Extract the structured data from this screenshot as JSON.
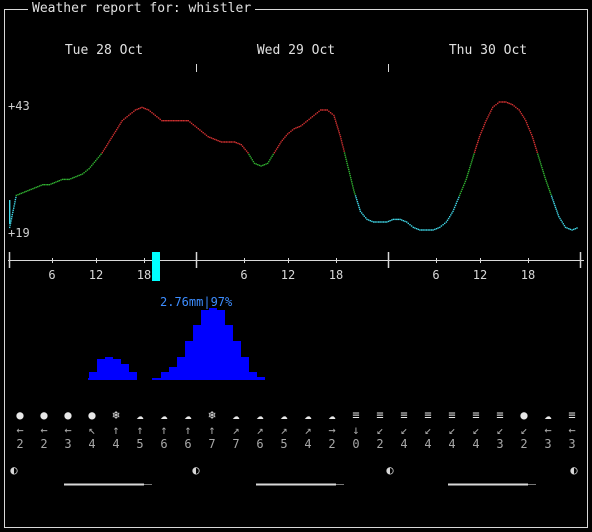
{
  "header": {
    "title": "Weather report for: whistler"
  },
  "days": [
    {
      "label": "Tue 28 Oct"
    },
    {
      "label": "Wed 29 Oct"
    },
    {
      "label": "Thu 30 Oct"
    }
  ],
  "temperature_axis": {
    "max_label": "+43",
    "min_label": "+19"
  },
  "hour_ticks": [
    "6",
    "12",
    "18",
    "6",
    "12",
    "18",
    "6",
    "12",
    "18"
  ],
  "precipitation": {
    "label": "2.76mm|97%"
  },
  "colors": {
    "red": "#d03030",
    "green": "#30b030",
    "cyan": "#40d8e8",
    "blue": "#0000ff",
    "now": "#00ffff",
    "precip_text": "#3d8dff"
  },
  "chart_data": {
    "type": "line",
    "title": "",
    "series": [
      {
        "name": "temperature",
        "values": [
          20,
          26,
          26.5,
          27,
          27.5,
          28,
          28,
          28.5,
          29,
          29,
          29.5,
          30,
          31,
          32.5,
          34,
          36,
          38,
          40,
          41,
          42,
          42.5,
          42,
          41,
          40,
          40,
          40,
          40,
          40,
          39,
          38,
          37,
          36.5,
          36,
          36,
          36,
          35.5,
          34,
          32,
          31.5,
          32,
          34,
          36,
          37.5,
          38.5,
          39,
          40,
          41,
          42,
          42,
          41,
          37,
          32,
          27,
          23,
          21.5,
          21,
          21,
          21,
          21.5,
          21.5,
          21,
          20,
          19.5,
          19.5,
          19.5,
          20,
          21,
          23,
          26,
          29,
          33,
          37,
          40,
          42.5,
          43.5,
          43.5,
          43,
          42,
          40,
          37,
          33,
          29,
          25.5,
          22,
          20,
          19.5,
          20
        ]
      },
      {
        "name": "precipitation_mm",
        "values": [
          0,
          0,
          0,
          0,
          0,
          0,
          0,
          0,
          0,
          0,
          0,
          0,
          0,
          0,
          0,
          0,
          0.3,
          0.8,
          0.9,
          0.8,
          0.6,
          0.3,
          0,
          0,
          0,
          0.3,
          0.5,
          0.9,
          1.5,
          2.1,
          2.7,
          2.76,
          2.7,
          2.1,
          1.5,
          0.9,
          0.3,
          0.1,
          0,
          0,
          0,
          0,
          0,
          0,
          0,
          0,
          0,
          0,
          0,
          0,
          0
        ]
      }
    ],
    "ylim": [
      19,
      43
    ],
    "grid": false
  },
  "weather_row": {
    "icons": [
      "moon-icon",
      "moon-icon",
      "moon-icon",
      "moon-icon",
      "snowflake-icon",
      "cloud-snow-icon",
      "cloud-snow-icon",
      "cloud-snow-icon",
      "snowflake-icon",
      "cloud-icon",
      "cloud-icon",
      "cloud-icon",
      "cloud-icon",
      "cloud-icon",
      "fog-icon",
      "fog-icon",
      "fog-icon",
      "fog-icon",
      "fog-icon",
      "fog-icon",
      "fog-icon",
      "moon-icon",
      "cloud-icon",
      "fog-icon"
    ],
    "glyphs": [
      "●",
      "●",
      "●",
      "●",
      "❄",
      "☁",
      "☁",
      "☁",
      "❄",
      "☁",
      "☁",
      "☁",
      "☁",
      "☁",
      "≡",
      "≡",
      "≡",
      "≡",
      "≡",
      "≡",
      "≡",
      "●",
      "☁",
      "≡"
    ],
    "arrows": [
      "←",
      "←",
      "←",
      "↖",
      "↑",
      "↑",
      "↑",
      "↑",
      "↑",
      "↗",
      "↗",
      "↗",
      "↗",
      "→",
      "↓",
      "↙",
      "↙",
      "↙",
      "↙",
      "↙",
      "↙",
      "↙",
      "←",
      "←"
    ],
    "speeds": [
      "2",
      "2",
      "3",
      "4",
      "4",
      "5",
      "6",
      "6",
      "7",
      "7",
      "6",
      "5",
      "4",
      "2",
      "0",
      "2",
      "4",
      "4",
      "4",
      "4",
      "3",
      "2",
      "3",
      "3"
    ]
  },
  "moon_phases": [
    "◐",
    "◐",
    "◐",
    "◐"
  ]
}
